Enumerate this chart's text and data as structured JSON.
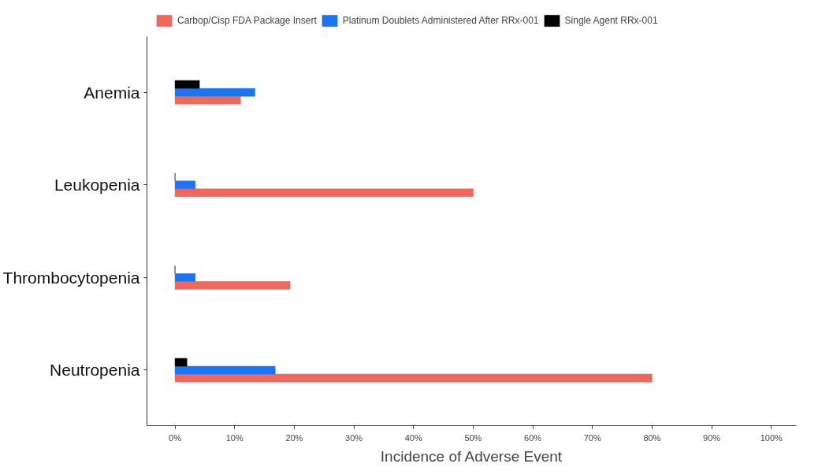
{
  "chart_data": {
    "type": "bar",
    "orientation": "horizontal",
    "xlabel": "Incidence of Adverse Event",
    "categories": [
      "Anemia",
      "Leukopenia",
      "Thrombocytopenia",
      "Neutropenia"
    ],
    "series": [
      {
        "name": "Carbop/Cisp FDA Package Insert",
        "color": "#f0675c",
        "values": [
          11,
          50,
          19.3,
          80
        ]
      },
      {
        "name": "Platinum Doublets Administered After RRx-001",
        "color": "#1a75f5",
        "values": [
          13.4,
          3.4,
          3.4,
          16.8
        ]
      },
      {
        "name": "Single Agent RRx-001",
        "color": "#000000",
        "values": [
          4.1,
          0,
          0,
          2
        ]
      }
    ],
    "xlim": [
      -4.7,
      104.2
    ],
    "xticks": [
      {
        "value": 0,
        "label": "0%"
      },
      {
        "value": 10,
        "label": "10%"
      },
      {
        "value": 20,
        "label": "20%"
      },
      {
        "value": 30,
        "label": "30%"
      },
      {
        "value": 40,
        "label": "40%"
      },
      {
        "value": 50,
        "label": "50%"
      },
      {
        "value": 60,
        "label": "60%"
      },
      {
        "value": 70,
        "label": "70%"
      },
      {
        "value": 80,
        "label": "80%"
      },
      {
        "value": 90,
        "label": "90%"
      },
      {
        "value": 100,
        "label": "100%"
      }
    ],
    "grid": false,
    "legend": "top"
  }
}
